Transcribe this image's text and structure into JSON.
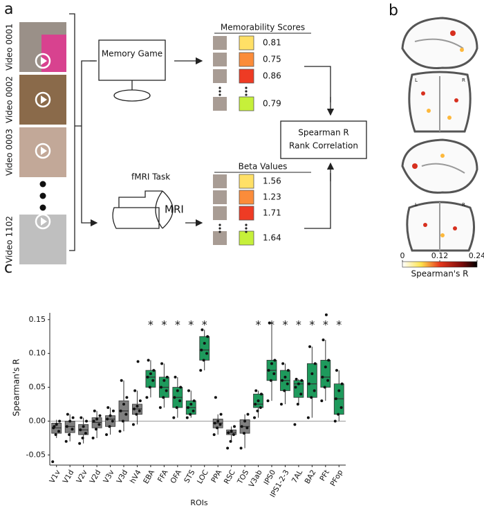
{
  "panel_labels": [
    "a",
    "b",
    "c"
  ],
  "panel_a": {
    "videos": [
      "Video 0001",
      "Video 0002",
      "Video 0003",
      "Video 1102"
    ],
    "memory_game": "Memory Game",
    "memorability": {
      "title": "Memorability Scores",
      "rows": [
        {
          "color": "#ffe066",
          "value": 0.81
        },
        {
          "color": "#fb8c3a",
          "value": 0.75
        },
        {
          "color": "#ee3b24",
          "value": 0.86
        },
        {
          "color": "#c6f03a",
          "value": 0.79
        }
      ]
    },
    "correlation": [
      "Spearman R",
      "Rank Correlation"
    ],
    "fmri_task": "fMRI Task",
    "mri": "MRI",
    "beta": {
      "title": "Beta Values",
      "rows": [
        {
          "color": "#ffe066",
          "value": 1.56
        },
        {
          "color": "#fb8c3a",
          "value": 1.23
        },
        {
          "color": "#ee3b24",
          "value": 1.71
        },
        {
          "color": "#c6f03a",
          "value": 1.64
        }
      ]
    }
  },
  "panel_b": {
    "hemisphere_labels": [
      "L",
      "R",
      "L",
      "R"
    ],
    "colorbar": {
      "lim": [
        0,
        0.24
      ],
      "ticks": [
        0,
        0.12,
        0.24
      ],
      "label": "Spearman's R"
    }
  },
  "chart_data": {
    "type": "box",
    "y_label": "Spearman's R",
    "x_label": "ROIs",
    "categories": [
      "V1v",
      "V1d",
      "V2v",
      "V2d",
      "V3v",
      "V3d",
      "hV4",
      "EBA",
      "FFA",
      "OFA",
      "STS",
      "LOC",
      "PPA",
      "RSC",
      "TOS",
      "V3ab",
      "IPS0",
      "IPS1-2-3",
      "7AL",
      "BA2",
      "PFt",
      "PFop"
    ],
    "boxes": [
      {
        "low": -0.025,
        "q1": -0.018,
        "median": -0.01,
        "q3": -0.003,
        "high": 0.002
      },
      {
        "low": -0.03,
        "q1": -0.017,
        "median": -0.008,
        "q3": 0.0,
        "high": 0.01
      },
      {
        "low": -0.033,
        "q1": -0.02,
        "median": -0.013,
        "q3": -0.005,
        "high": 0.005
      },
      {
        "low": -0.025,
        "q1": -0.01,
        "median": -0.002,
        "q3": 0.005,
        "high": 0.015
      },
      {
        "low": -0.02,
        "q1": -0.008,
        "median": 0.003,
        "q3": 0.008,
        "high": 0.02
      },
      {
        "low": -0.015,
        "q1": 0.0,
        "median": 0.015,
        "q3": 0.03,
        "high": 0.06
      },
      {
        "low": -0.005,
        "q1": 0.01,
        "median": 0.018,
        "q3": 0.025,
        "high": 0.045
      },
      {
        "low": 0.035,
        "q1": 0.05,
        "median": 0.065,
        "q3": 0.075,
        "high": 0.09
      },
      {
        "low": 0.02,
        "q1": 0.035,
        "median": 0.05,
        "q3": 0.065,
        "high": 0.085
      },
      {
        "low": 0.005,
        "q1": 0.02,
        "median": 0.035,
        "q3": 0.05,
        "high": 0.065
      },
      {
        "low": 0.005,
        "q1": 0.01,
        "median": 0.02,
        "q3": 0.03,
        "high": 0.045
      },
      {
        "low": 0.075,
        "q1": 0.09,
        "median": 0.105,
        "q3": 0.125,
        "high": 0.135
      },
      {
        "low": -0.02,
        "q1": -0.01,
        "median": -0.003,
        "q3": 0.003,
        "high": 0.01
      },
      {
        "low": -0.03,
        "q1": -0.02,
        "median": -0.017,
        "q3": -0.013,
        "high": -0.008
      },
      {
        "low": -0.04,
        "q1": -0.018,
        "median": -0.008,
        "q3": 0.002,
        "high": 0.01
      },
      {
        "low": 0.005,
        "q1": 0.02,
        "median": 0.025,
        "q3": 0.04,
        "high": 0.045
      },
      {
        "low": 0.03,
        "q1": 0.06,
        "median": 0.075,
        "q3": 0.09,
        "high": 0.145
      },
      {
        "low": 0.025,
        "q1": 0.045,
        "median": 0.06,
        "q3": 0.075,
        "high": 0.085
      },
      {
        "low": 0.025,
        "q1": 0.035,
        "median": 0.055,
        "q3": 0.06,
        "high": 0.062
      },
      {
        "low": 0.005,
        "q1": 0.035,
        "median": 0.055,
        "q3": 0.085,
        "high": 0.11
      },
      {
        "low": 0.03,
        "q1": 0.05,
        "median": 0.065,
        "q3": 0.09,
        "high": 0.12
      },
      {
        "low": 0.0,
        "q1": 0.01,
        "median": 0.033,
        "q3": 0.055,
        "high": 0.075
      }
    ],
    "points": [
      [
        -0.06,
        -0.02,
        -0.015,
        -0.01,
        -0.005,
        0.0,
        -0.008
      ],
      [
        -0.03,
        -0.02,
        -0.012,
        -0.008,
        0.0,
        0.005,
        0.01
      ],
      [
        -0.033,
        -0.025,
        -0.018,
        -0.013,
        -0.008,
        0.0,
        0.005
      ],
      [
        -0.025,
        -0.012,
        -0.005,
        0.0,
        0.003,
        0.008,
        0.015
      ],
      [
        -0.02,
        -0.008,
        0.0,
        0.003,
        0.008,
        0.015,
        0.02
      ],
      [
        -0.015,
        0.0,
        0.01,
        0.015,
        0.025,
        0.035,
        0.06
      ],
      [
        -0.005,
        0.01,
        0.015,
        0.018,
        0.022,
        0.03,
        0.045,
        0.088
      ],
      [
        0.035,
        0.05,
        0.06,
        0.065,
        0.07,
        0.075,
        0.09
      ],
      [
        0.02,
        0.035,
        0.045,
        0.05,
        0.06,
        0.065,
        0.085
      ],
      [
        0.005,
        0.02,
        0.03,
        0.035,
        0.045,
        0.05,
        0.065
      ],
      [
        0.005,
        0.01,
        0.015,
        0.02,
        0.025,
        0.03,
        0.045
      ],
      [
        0.075,
        0.09,
        0.1,
        0.105,
        0.115,
        0.125,
        0.135
      ],
      [
        -0.02,
        -0.01,
        -0.005,
        -0.003,
        0.0,
        0.01,
        0.035
      ],
      [
        -0.04,
        -0.03,
        -0.02,
        -0.017,
        -0.015,
        -0.008
      ],
      [
        -0.04,
        -0.018,
        -0.01,
        -0.008,
        0.0,
        0.01
      ],
      [
        0.005,
        0.015,
        0.02,
        0.025,
        0.03,
        0.04,
        0.045
      ],
      [
        0.03,
        0.06,
        0.07,
        0.075,
        0.085,
        0.09,
        0.145
      ],
      [
        0.025,
        0.045,
        0.055,
        0.06,
        0.065,
        0.075,
        0.085
      ],
      [
        -0.005,
        0.025,
        0.04,
        0.05,
        0.055,
        0.06,
        0.062
      ],
      [
        0.005,
        0.035,
        0.045,
        0.055,
        0.07,
        0.085,
        0.11
      ],
      [
        0.03,
        0.05,
        0.06,
        0.065,
        0.08,
        0.09,
        0.12,
        0.157
      ],
      [
        0.0,
        0.01,
        0.02,
        0.033,
        0.045,
        0.055,
        0.075
      ]
    ],
    "significant": [
      false,
      false,
      false,
      false,
      false,
      false,
      false,
      true,
      true,
      true,
      true,
      true,
      false,
      false,
      false,
      true,
      true,
      true,
      true,
      true,
      true,
      true
    ],
    "significance_marker": "*",
    "color_significant": "#1e9a5c",
    "color_nonsignificant": "#7f7f7f",
    "ylim": [
      -0.065,
      0.16
    ],
    "yticks": [
      -0.05,
      {
        "value": 0,
        "label": "0.00"
      },
      0.05,
      {
        "value": 0.1,
        "label": "0.10"
      },
      0.15
    ]
  }
}
